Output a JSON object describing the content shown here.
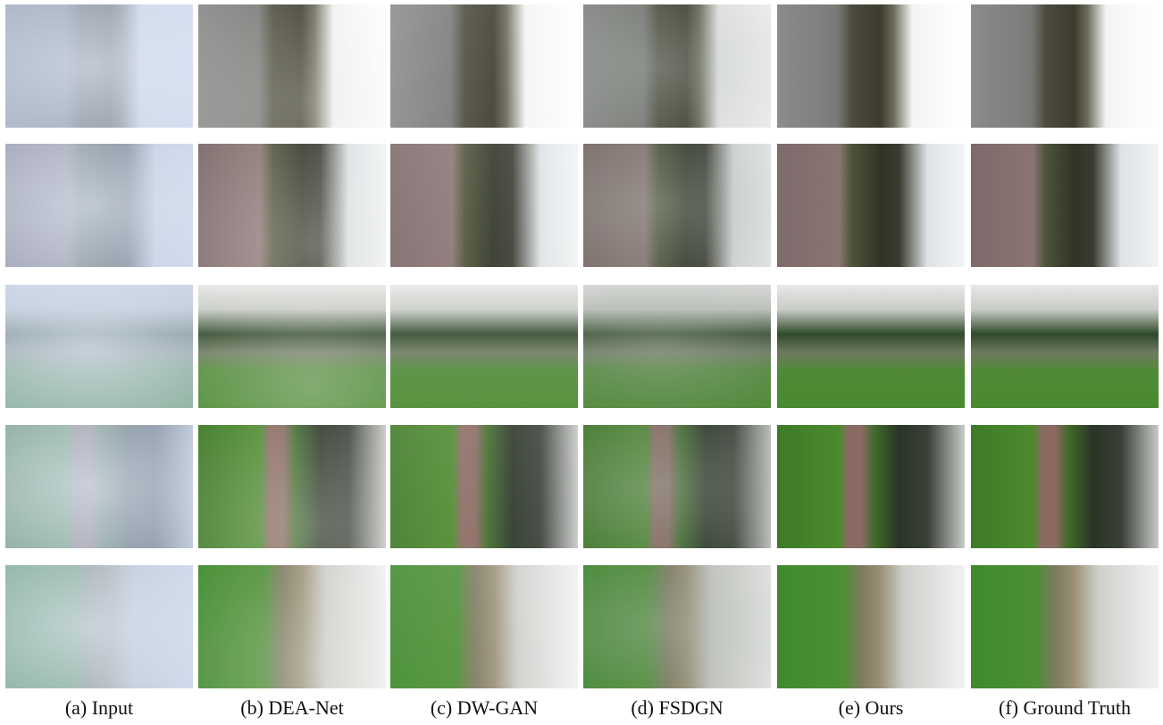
{
  "captions": [
    "(a) Input",
    "(b) DEA-Net",
    "(c) DW-GAN",
    "(d) FSDGN",
    "(e) Ours",
    "(f) Ground Truth"
  ]
}
